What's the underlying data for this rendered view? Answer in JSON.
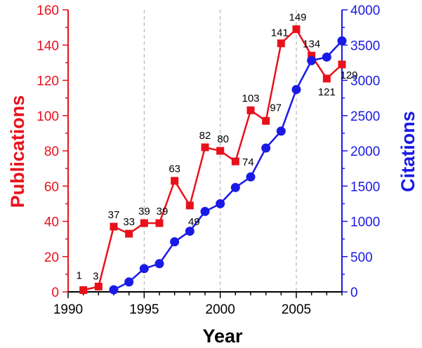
{
  "chart_data": {
    "type": "line",
    "xlabel": "Year",
    "ylabel_left": "Publications",
    "ylabel_right": "Citations",
    "xlim": [
      1990,
      2008
    ],
    "ylim_left": [
      0,
      160
    ],
    "ylim_right": [
      0,
      4000
    ],
    "x_ticks": [
      1990,
      1995,
      2000,
      2005
    ],
    "y_ticks_left": [
      0,
      20,
      40,
      60,
      80,
      100,
      120,
      140,
      160
    ],
    "y_ticks_right": [
      0,
      500,
      1000,
      1500,
      2000,
      2500,
      3000,
      3500,
      4000
    ],
    "grid": "vertical dashed at 1995, 2000, 2005",
    "series": [
      {
        "axis": "left",
        "color": "#e8111b",
        "marker": "square",
        "x": [
          1991,
          1992,
          1993,
          1994,
          1995,
          1996,
          1997,
          1998,
          1999,
          2000,
          2001,
          2002,
          2003,
          2004,
          2005,
          2006,
          2007,
          2008
        ],
        "values": [
          1,
          3,
          37,
          33,
          39,
          39,
          63,
          49,
          82,
          80,
          74,
          103,
          97,
          141,
          149,
          134,
          121,
          129
        ],
        "labels": [
          "1",
          "3",
          "37",
          "33",
          "39",
          "39",
          "63",
          "49",
          "82",
          "80",
          "74",
          "103",
          "97",
          "141",
          "149",
          "134",
          "121",
          "129"
        ]
      },
      {
        "axis": "right",
        "color": "#1a1ae6",
        "marker": "circle",
        "x": [
          1993,
          1994,
          1995,
          1996,
          1997,
          1998,
          1999,
          2000,
          2001,
          2002,
          2003,
          2004,
          2005,
          2006,
          2007,
          2008
        ],
        "values": [
          30,
          140,
          330,
          400,
          710,
          860,
          1140,
          1250,
          1480,
          1630,
          2040,
          2280,
          2870,
          3280,
          3330,
          3560
        ]
      }
    ]
  }
}
